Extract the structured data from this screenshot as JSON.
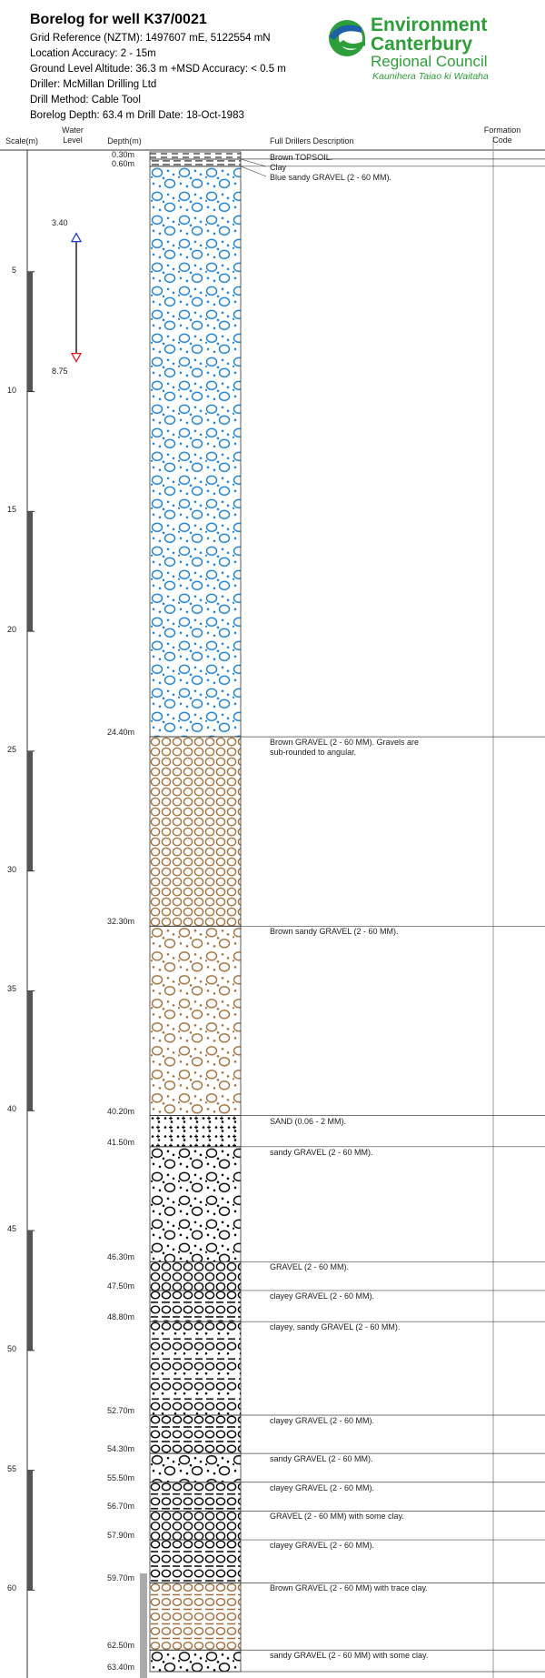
{
  "header": {
    "title": "Borelog for well K37/0021",
    "lines": [
      "Grid Reference (NZTM):  1497607 mE, 5122554 mN",
      "Location Accuracy:  2 - 15m",
      "Ground Level Altitude:  36.3 m +MSD Accuracy: < 0.5 m",
      "Driller:  McMillan Drilling Ltd",
      "Drill Method:  Cable Tool",
      "Borelog Depth:  63.4 m    Drill Date:  18-Oct-1983"
    ]
  },
  "logo": {
    "line1": "Environment",
    "line2": "Canterbury",
    "line3": "Regional Council",
    "line4": "Kaunihera Taiao ki Waitaha"
  },
  "columns": {
    "scale": "Scale(m)",
    "water": "Water Level",
    "depth": "Depth(m)",
    "description": "Full Drillers Description",
    "formation": "Formation Code"
  },
  "scale": {
    "lim": [
      0,
      63.4
    ],
    "ticks": [
      5,
      10,
      15,
      20,
      25,
      30,
      35,
      40,
      45,
      50,
      55,
      60
    ]
  },
  "water_level": [
    {
      "value": 3.4,
      "label": "3.40"
    },
    {
      "value": 8.75,
      "label": "8.75"
    }
  ],
  "layers": [
    {
      "bottom": {
        "value": 0.3,
        "label": "0.30m"
      },
      "description": "Brown TOPSOIL.",
      "pattern": "topsoil",
      "color": "#000000"
    },
    {
      "bottom": {
        "value": 0.6,
        "label": "0.60m"
      },
      "description": "Clay",
      "pattern": "clay",
      "color": "#000000"
    },
    {
      "bottom": {
        "value": 24.4,
        "label": "24.40m"
      },
      "description": "Blue sandy GRAVEL (2 - 60 MM).",
      "pattern": "sandy-gravel",
      "color": "#1a7fd6"
    },
    {
      "bottom": {
        "value": 32.3,
        "label": "32.30m"
      },
      "description": "Brown GRAVEL (2 - 60 MM). Gravels are sub-rounded to angular.",
      "pattern": "gravel",
      "color": "#a0703c"
    },
    {
      "bottom": {
        "value": 40.2,
        "label": "40.20m"
      },
      "description": "Brown sandy GRAVEL (2 - 60 MM).",
      "pattern": "sandy-gravel",
      "color": "#a0703c"
    },
    {
      "bottom": {
        "value": 41.5,
        "label": "41.50m"
      },
      "description": "SAND (0.06 - 2 MM).",
      "pattern": "sand",
      "color": "#000000"
    },
    {
      "bottom": {
        "value": 46.3,
        "label": "46.30m"
      },
      "description": "sandy GRAVEL (2 - 60 MM).",
      "pattern": "sandy-gravel",
      "color": "#000000"
    },
    {
      "bottom": {
        "value": 47.5,
        "label": "47.50m"
      },
      "description": "GRAVEL (2 - 60 MM).",
      "pattern": "gravel",
      "color": "#000000"
    },
    {
      "bottom": {
        "value": 48.8,
        "label": "48.80m"
      },
      "description": "clayey GRAVEL (2 - 60 MM).",
      "pattern": "clayey-gravel",
      "color": "#000000"
    },
    {
      "bottom": {
        "value": 52.7,
        "label": "52.70m"
      },
      "description": "clayey, sandy GRAVEL (2 - 60 MM).",
      "pattern": "clayey-sandy-gravel",
      "color": "#000000"
    },
    {
      "bottom": {
        "value": 54.3,
        "label": "54.30m"
      },
      "description": "clayey GRAVEL (2 - 60 MM).",
      "pattern": "clayey-gravel",
      "color": "#000000"
    },
    {
      "bottom": {
        "value": 55.5,
        "label": "55.50m"
      },
      "description": "sandy GRAVEL (2 - 60 MM).",
      "pattern": "sandy-gravel",
      "color": "#000000"
    },
    {
      "bottom": {
        "value": 56.7,
        "label": "56.70m"
      },
      "description": "clayey GRAVEL (2 - 60 MM).",
      "pattern": "clayey-gravel",
      "color": "#000000"
    },
    {
      "bottom": {
        "value": 57.9,
        "label": "57.90m"
      },
      "description": "GRAVEL (2 - 60 MM) with some clay.",
      "pattern": "gravel",
      "color": "#000000"
    },
    {
      "bottom": {
        "value": 59.7,
        "label": "59.70m"
      },
      "description": "clayey GRAVEL (2 - 60 MM).",
      "pattern": "clayey-gravel",
      "color": "#000000"
    },
    {
      "bottom": {
        "value": 62.5,
        "label": "62.50m"
      },
      "description": "Brown GRAVEL (2 - 60 MM) with trace clay.",
      "pattern": "clayey-gravel",
      "color": "#a0703c"
    },
    {
      "bottom": {
        "value": 63.4,
        "label": "63.40m"
      },
      "description": "sandy GRAVEL (2 - 60 MM) with some clay.",
      "pattern": "sandy-gravel",
      "color": "#000000"
    }
  ]
}
